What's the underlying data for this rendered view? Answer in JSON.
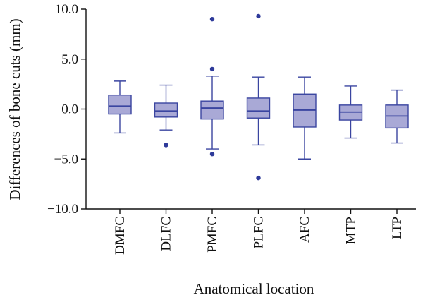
{
  "chart_data": {
    "type": "box",
    "title": "",
    "xlabel": "Anatomical location",
    "ylabel": "Differences of bone cuts (mm)",
    "ylim": [
      -10,
      10
    ],
    "yticks": [
      10,
      5,
      0,
      -5,
      -10
    ],
    "ytick_labels": [
      "10.0",
      "5.0",
      "0.0",
      "−5.0",
      "−10.0"
    ],
    "categories": [
      "DMFC",
      "DLFC",
      "PMFC",
      "PLFC",
      "AFC",
      "MTP",
      "LTP"
    ],
    "boxes": [
      {
        "whisker_low": -2.4,
        "q1": -0.5,
        "median": 0.3,
        "q3": 1.4,
        "whisker_high": 2.8,
        "outliers": []
      },
      {
        "whisker_low": -2.1,
        "q1": -0.8,
        "median": -0.2,
        "q3": 0.6,
        "whisker_high": 2.4,
        "outliers": [
          -3.6
        ]
      },
      {
        "whisker_low": -4.0,
        "q1": -1.0,
        "median": 0.1,
        "q3": 0.8,
        "whisker_high": 3.3,
        "outliers": [
          9.0,
          4.0,
          -4.5
        ]
      },
      {
        "whisker_low": -3.6,
        "q1": -0.9,
        "median": -0.2,
        "q3": 1.1,
        "whisker_high": 3.2,
        "outliers": [
          9.3,
          -6.9
        ]
      },
      {
        "whisker_low": -5.0,
        "q1": -1.8,
        "median": -0.1,
        "q3": 1.5,
        "whisker_high": 3.2,
        "outliers": []
      },
      {
        "whisker_low": -2.9,
        "q1": -1.1,
        "median": -0.3,
        "q3": 0.4,
        "whisker_high": 2.3,
        "outliers": []
      },
      {
        "whisker_low": -3.4,
        "q1": -1.9,
        "median": -0.7,
        "q3": 0.4,
        "whisker_high": 1.9,
        "outliers": []
      }
    ],
    "grid": false,
    "legend": "none",
    "colors": {
      "box_fill": "#a9a9d6",
      "box_stroke": "#3a45a0",
      "outlier": "#2e3a9a",
      "axis": "#111111"
    }
  }
}
